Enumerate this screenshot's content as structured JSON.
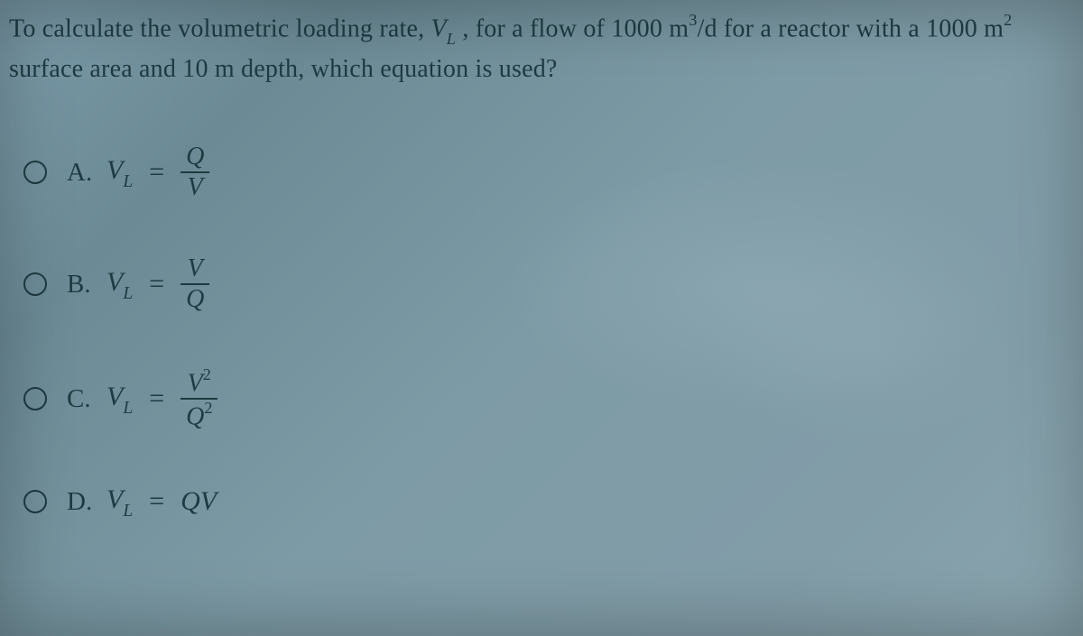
{
  "question": {
    "part1": "To calculate the volumetric loading rate, ",
    "vL_var": "V",
    "vL_sub": "L",
    "part2": " , for a flow of 1000 m",
    "exp3": "3",
    "part3": "/d for a reactor with a 1000 m",
    "exp2": "2",
    "part4": " surface area and 10 m depth, which equation is used?"
  },
  "options": [
    {
      "letter": "A.",
      "lhs_var": "V",
      "lhs_sub": "L",
      "type": "frac",
      "num": "Q",
      "den": "V"
    },
    {
      "letter": "B.",
      "lhs_var": "V",
      "lhs_sub": "L",
      "type": "frac",
      "num": "V",
      "den": "Q"
    },
    {
      "letter": "C.",
      "lhs_var": "V",
      "lhs_sub": "L",
      "type": "frac2",
      "num_base": "V",
      "num_exp": "2",
      "den_base": "Q",
      "den_exp": "2"
    },
    {
      "letter": "D.",
      "lhs_var": "V",
      "lhs_sub": "L",
      "type": "product",
      "rhs": "QV"
    }
  ],
  "colors": {
    "text": "#1e3a42",
    "background_from": "#7a9aa8",
    "background_to": "#8aa5af"
  },
  "eq_sign": "="
}
